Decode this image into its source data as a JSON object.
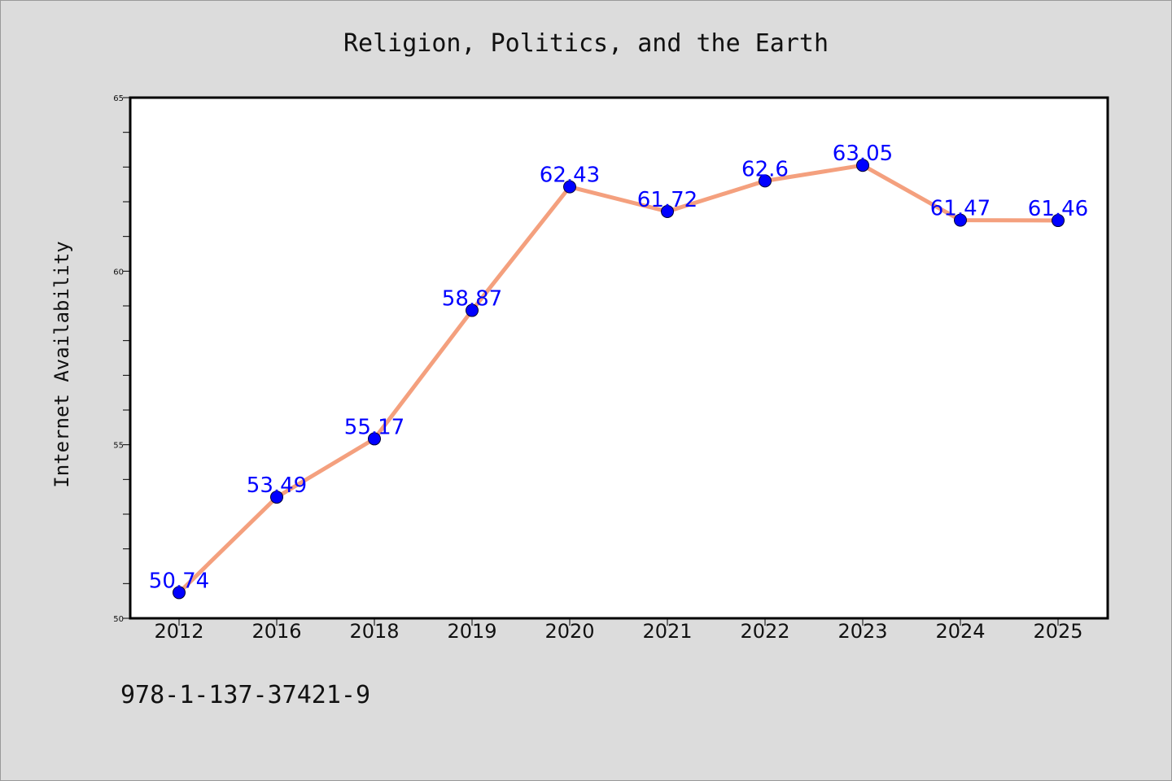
{
  "chart_data": {
    "type": "line",
    "title": "Religion, Politics, and the Earth",
    "xlabel": "",
    "ylabel": "Internet Availability",
    "categories": [
      "2012",
      "2016",
      "2018",
      "2019",
      "2020",
      "2021",
      "2022",
      "2023",
      "2024",
      "2025"
    ],
    "series": [
      {
        "values": [
          50.74,
          53.49,
          55.17,
          58.87,
          62.43,
          61.72,
          62.6,
          63.05,
          61.47,
          61.46
        ],
        "labels": [
          "50.74",
          "53.49",
          "55.17",
          "58.87",
          "62.43",
          "61.72",
          "62.6",
          "63.05",
          "61.47",
          "61.46"
        ],
        "line_color": "#f4a07e",
        "marker_color": "#0000ff"
      }
    ],
    "ylim": [
      50,
      65
    ],
    "yticks": [
      "50",
      "55",
      "60",
      "65"
    ],
    "grid": false,
    "data_label_color": "#0000ff"
  },
  "footer": {
    "isbn": "978-1-137-37421-9"
  },
  "colors": {
    "background": "#dcdcdc",
    "plot_area": "#ffffff",
    "axis": "#000000"
  }
}
